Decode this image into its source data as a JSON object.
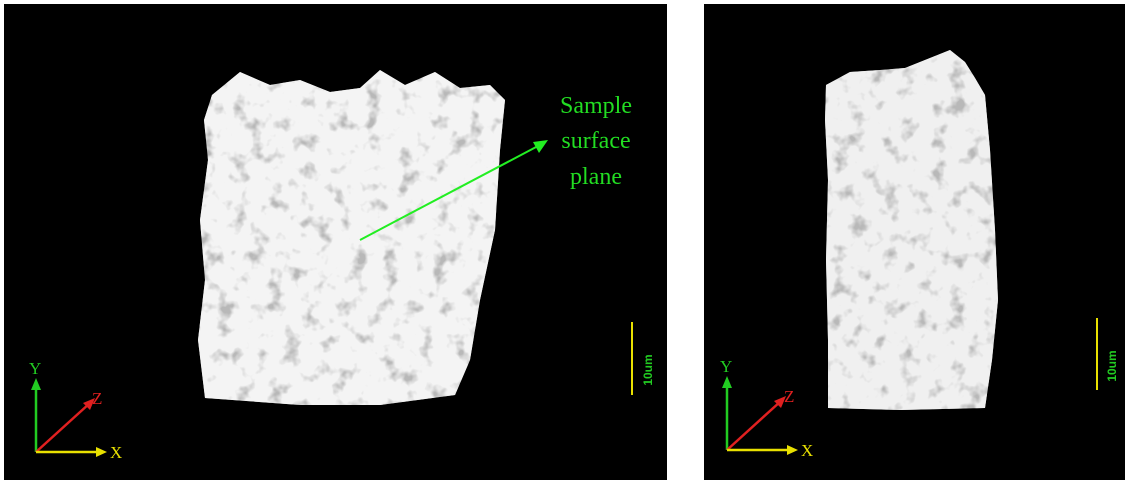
{
  "panels": [
    {
      "axes": {
        "y": "Y",
        "z": "Z",
        "x": "X"
      },
      "scale_bar": "10um",
      "annotation": [
        "Sample",
        "surface",
        "plane"
      ]
    },
    {
      "axes": {
        "y": "Y",
        "z": "Z",
        "x": "X"
      },
      "scale_bar": "10um"
    }
  ]
}
